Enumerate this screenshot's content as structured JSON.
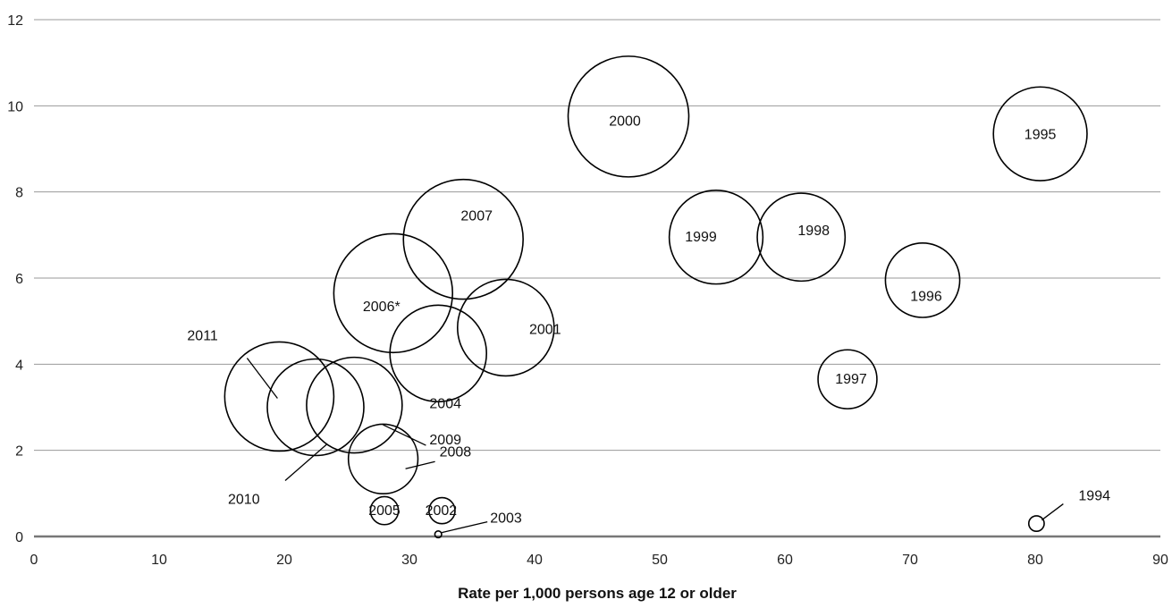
{
  "chart_data": {
    "type": "bubble",
    "title": "",
    "xlabel": "Rate per 1,000 persons age 12 or older",
    "ylabel": "",
    "xlim": [
      0,
      90
    ],
    "ylim": [
      0,
      12
    ],
    "xticks": [
      "0",
      "10",
      "20",
      "30",
      "40",
      "50",
      "60",
      "70",
      "80",
      "90"
    ],
    "yticks": [
      "0",
      "2",
      "4",
      "6",
      "8",
      "10",
      "12"
    ],
    "grid": "horizontal",
    "points": [
      {
        "label": "1994",
        "x": 80.1,
        "y": 0.3,
        "size": 0.16
      },
      {
        "label": "1995",
        "x": 80.4,
        "y": 9.35,
        "size": 0.97
      },
      {
        "label": "1996",
        "x": 71.0,
        "y": 5.95,
        "size": 0.77
      },
      {
        "label": "1997",
        "x": 65.0,
        "y": 3.65,
        "size": 0.61
      },
      {
        "label": "1998",
        "x": 61.3,
        "y": 6.95,
        "size": 0.91
      },
      {
        "label": "1999",
        "x": 54.5,
        "y": 6.95,
        "size": 0.97
      },
      {
        "label": "2000",
        "x": 47.5,
        "y": 9.75,
        "size": 1.25
      },
      {
        "label": "2001",
        "x": 37.7,
        "y": 4.85,
        "size": 1.0
      },
      {
        "label": "2002",
        "x": 32.6,
        "y": 0.6,
        "size": 0.27
      },
      {
        "label": "2003",
        "x": 32.3,
        "y": 0.05,
        "size": 0.07
      },
      {
        "label": "2004",
        "x": 32.3,
        "y": 4.25,
        "size": 1.0
      },
      {
        "label": "2005",
        "x": 28.0,
        "y": 0.6,
        "size": 0.29
      },
      {
        "label": "2006*",
        "x": 28.7,
        "y": 5.65,
        "size": 1.23
      },
      {
        "label": "2007",
        "x": 34.3,
        "y": 6.9,
        "size": 1.24
      },
      {
        "label": "2008",
        "x": 27.9,
        "y": 1.8,
        "size": 0.72
      },
      {
        "label": "2009",
        "x": 25.6,
        "y": 3.05,
        "size": 0.99
      },
      {
        "label": "2010",
        "x": 22.5,
        "y": 3.0,
        "size": 1.0
      },
      {
        "label": "2011",
        "x": 19.6,
        "y": 3.25,
        "size": 1.13
      }
    ]
  }
}
